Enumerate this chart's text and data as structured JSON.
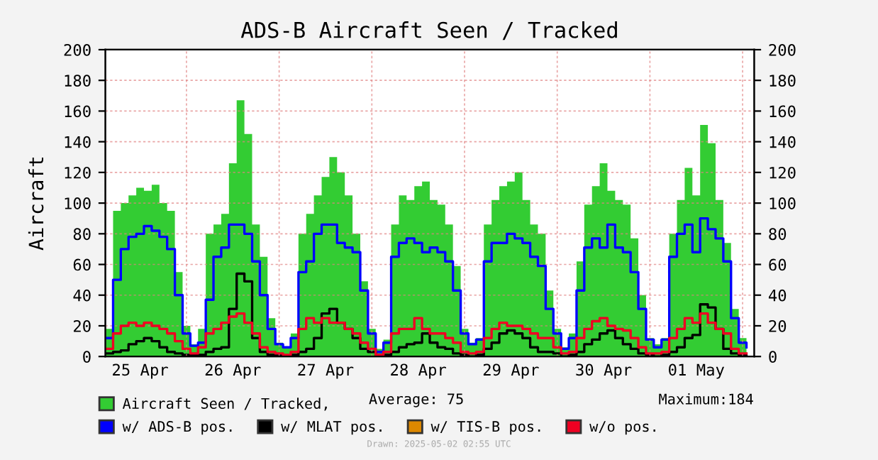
{
  "chart_data": {
    "type": "step",
    "title": "ADS-B Aircraft Seen / Tracked",
    "ylabel": "Aircraft",
    "x": [
      "2025-04-25T03:00",
      "2025-04-25T05:00",
      "2025-04-25T07:00",
      "2025-04-25T09:00",
      "2025-04-25T11:00",
      "2025-04-25T13:00",
      "2025-04-25T15:00",
      "2025-04-25T17:00",
      "2025-04-25T19:00",
      "2025-04-25T21:00",
      "2025-04-25T23:00",
      "2025-04-26T01:00",
      "2025-04-26T03:00",
      "2025-04-26T05:00",
      "2025-04-26T07:00",
      "2025-04-26T09:00",
      "2025-04-26T11:00",
      "2025-04-26T13:00",
      "2025-04-26T15:00",
      "2025-04-26T17:00",
      "2025-04-26T19:00",
      "2025-04-26T21:00",
      "2025-04-26T23:00",
      "2025-04-27T01:00",
      "2025-04-27T03:00",
      "2025-04-27T05:00",
      "2025-04-27T07:00",
      "2025-04-27T09:00",
      "2025-04-27T11:00",
      "2025-04-27T13:00",
      "2025-04-27T15:00",
      "2025-04-27T17:00",
      "2025-04-27T19:00",
      "2025-04-27T21:00",
      "2025-04-27T23:00",
      "2025-04-28T01:00",
      "2025-04-28T03:00",
      "2025-04-28T05:00",
      "2025-04-28T07:00",
      "2025-04-28T09:00",
      "2025-04-28T11:00",
      "2025-04-28T13:00",
      "2025-04-28T15:00",
      "2025-04-28T17:00",
      "2025-04-28T19:00",
      "2025-04-28T21:00",
      "2025-04-28T23:00",
      "2025-04-29T01:00",
      "2025-04-29T03:00",
      "2025-04-29T05:00",
      "2025-04-29T07:00",
      "2025-04-29T09:00",
      "2025-04-29T11:00",
      "2025-04-29T13:00",
      "2025-04-29T15:00",
      "2025-04-29T17:00",
      "2025-04-29T19:00",
      "2025-04-29T21:00",
      "2025-04-29T23:00",
      "2025-04-30T01:00",
      "2025-04-30T03:00",
      "2025-04-30T05:00",
      "2025-04-30T07:00",
      "2025-04-30T09:00",
      "2025-04-30T11:00",
      "2025-04-30T13:00",
      "2025-04-30T15:00",
      "2025-04-30T17:00",
      "2025-04-30T19:00",
      "2025-04-30T21:00",
      "2025-04-30T23:00",
      "2025-05-01T01:00",
      "2025-05-01T03:00",
      "2025-05-01T05:00",
      "2025-05-01T07:00",
      "2025-05-01T09:00",
      "2025-05-01T11:00",
      "2025-05-01T13:00",
      "2025-05-01T15:00",
      "2025-05-01T17:00",
      "2025-05-01T19:00",
      "2025-05-01T21:00",
      "2025-05-01T23:00",
      "2025-05-02T01:00"
    ],
    "series": [
      {
        "name": "Aircraft Seen / Tracked,",
        "type": "area",
        "color": "#33cc33",
        "values": [
          18,
          95,
          100,
          105,
          110,
          108,
          112,
          100,
          95,
          55,
          20,
          8,
          18,
          80,
          86,
          93,
          126,
          167,
          145,
          86,
          65,
          25,
          9,
          6,
          15,
          80,
          93,
          105,
          117,
          130,
          120,
          105,
          80,
          49,
          18,
          5,
          11,
          86,
          105,
          102,
          111,
          114,
          102,
          99,
          86,
          59,
          18,
          9,
          12,
          86,
          102,
          111,
          114,
          120,
          102,
          86,
          80,
          43,
          18,
          6,
          15,
          62,
          99,
          111,
          126,
          108,
          102,
          99,
          77,
          40,
          12,
          8,
          12,
          80,
          102,
          123,
          105,
          151,
          139,
          102,
          74,
          31,
          12,
          9
        ]
      },
      {
        "name": "w/ ADS-B pos.",
        "color": "#0000ff",
        "values": [
          12,
          50,
          70,
          78,
          80,
          85,
          82,
          78,
          70,
          40,
          15,
          7,
          9,
          37,
          65,
          71,
          86,
          86,
          80,
          62,
          40,
          18,
          8,
          6,
          12,
          55,
          62,
          80,
          86,
          86,
          74,
          71,
          68,
          43,
          15,
          3,
          9,
          65,
          74,
          77,
          74,
          68,
          71,
          68,
          62,
          43,
          15,
          8,
          11,
          62,
          74,
          74,
          80,
          77,
          74,
          65,
          59,
          31,
          15,
          5,
          12,
          43,
          71,
          77,
          71,
          86,
          71,
          68,
          55,
          31,
          11,
          6,
          11,
          65,
          80,
          86,
          68,
          90,
          83,
          77,
          62,
          25,
          9,
          6
        ]
      },
      {
        "name": "w/ MLAT pos.",
        "color": "#000000",
        "values": [
          2,
          3,
          4,
          8,
          10,
          12,
          10,
          6,
          3,
          2,
          1,
          1,
          1,
          3,
          5,
          6,
          31,
          54,
          49,
          12,
          3,
          1,
          1,
          0,
          1,
          3,
          5,
          12,
          28,
          31,
          22,
          18,
          12,
          5,
          3,
          0,
          1,
          3,
          6,
          8,
          9,
          15,
          9,
          6,
          5,
          2,
          1,
          0,
          1,
          5,
          9,
          15,
          17,
          15,
          12,
          6,
          3,
          3,
          2,
          0,
          1,
          3,
          8,
          11,
          15,
          17,
          12,
          8,
          5,
          2,
          1,
          0,
          1,
          3,
          6,
          12,
          14,
          34,
          32,
          18,
          5,
          2,
          1,
          0
        ]
      },
      {
        "name": "w/ TIS-B pos.",
        "color": "#dd8800",
        "values": [
          null,
          null,
          null,
          null,
          null,
          null,
          null,
          null,
          null,
          null,
          null,
          null,
          null,
          null,
          null,
          null,
          null,
          null,
          null,
          null,
          null,
          null,
          null,
          null,
          null,
          null,
          null,
          null,
          null,
          null,
          null,
          null,
          null,
          null,
          null,
          null,
          null,
          null,
          null,
          null,
          null,
          null,
          null,
          null,
          null,
          null,
          null,
          null,
          null,
          null,
          null,
          null,
          null,
          null,
          null,
          null,
          null,
          null,
          null,
          null,
          null,
          null,
          null,
          null,
          null,
          null,
          null,
          null,
          null,
          null,
          null,
          null,
          null,
          null,
          null,
          null,
          null,
          null,
          null,
          null,
          null,
          null,
          null,
          null
        ]
      },
      {
        "name": "w/o pos.",
        "color": "#ee0022",
        "values": [
          5,
          15,
          20,
          22,
          20,
          22,
          20,
          18,
          15,
          10,
          5,
          2,
          6,
          15,
          18,
          22,
          26,
          28,
          22,
          15,
          6,
          3,
          2,
          1,
          3,
          18,
          25,
          22,
          25,
          22,
          22,
          18,
          15,
          9,
          5,
          1,
          3,
          15,
          18,
          18,
          25,
          18,
          15,
          15,
          12,
          9,
          3,
          2,
          3,
          12,
          18,
          22,
          20,
          20,
          18,
          15,
          12,
          12,
          6,
          2,
          3,
          12,
          18,
          23,
          25,
          20,
          18,
          17,
          12,
          6,
          2,
          2,
          3,
          12,
          18,
          25,
          22,
          28,
          22,
          18,
          15,
          5,
          2,
          2
        ]
      }
    ],
    "xlim": [
      "2025-04-25T03:00",
      "2025-05-02T03:00"
    ],
    "xticks": [
      {
        "value": "2025-04-25T12:00",
        "label": "25 Apr"
      },
      {
        "value": "2025-04-26T00:00",
        "label": null
      },
      {
        "value": "2025-04-26T12:00",
        "label": "26 Apr"
      },
      {
        "value": "2025-04-27T00:00",
        "label": null
      },
      {
        "value": "2025-04-27T12:00",
        "label": "27 Apr"
      },
      {
        "value": "2025-04-28T00:00",
        "label": null
      },
      {
        "value": "2025-04-28T12:00",
        "label": "28 Apr"
      },
      {
        "value": "2025-04-29T00:00",
        "label": null
      },
      {
        "value": "2025-04-29T12:00",
        "label": "29 Apr"
      },
      {
        "value": "2025-04-30T00:00",
        "label": null
      },
      {
        "value": "2025-04-30T12:00",
        "label": "30 Apr"
      },
      {
        "value": "2025-05-01T00:00",
        "label": null
      },
      {
        "value": "2025-05-01T12:00",
        "label": "01 May"
      },
      {
        "value": "2025-05-02T00:00",
        "label": null
      }
    ],
    "ylim": [
      0,
      200
    ],
    "yticks": [
      0,
      20,
      40,
      60,
      80,
      100,
      120,
      140,
      160,
      180,
      200
    ],
    "y2lim": [
      0,
      200
    ],
    "y2ticks": [
      0,
      20,
      40,
      60,
      80,
      100,
      120,
      140,
      160,
      180,
      200
    ],
    "grid": true,
    "legend": "bottom",
    "annotations": [
      "Average: 75",
      "Maximum:184",
      "Drawn: 2025-05-02 02:55 UTC"
    ]
  }
}
